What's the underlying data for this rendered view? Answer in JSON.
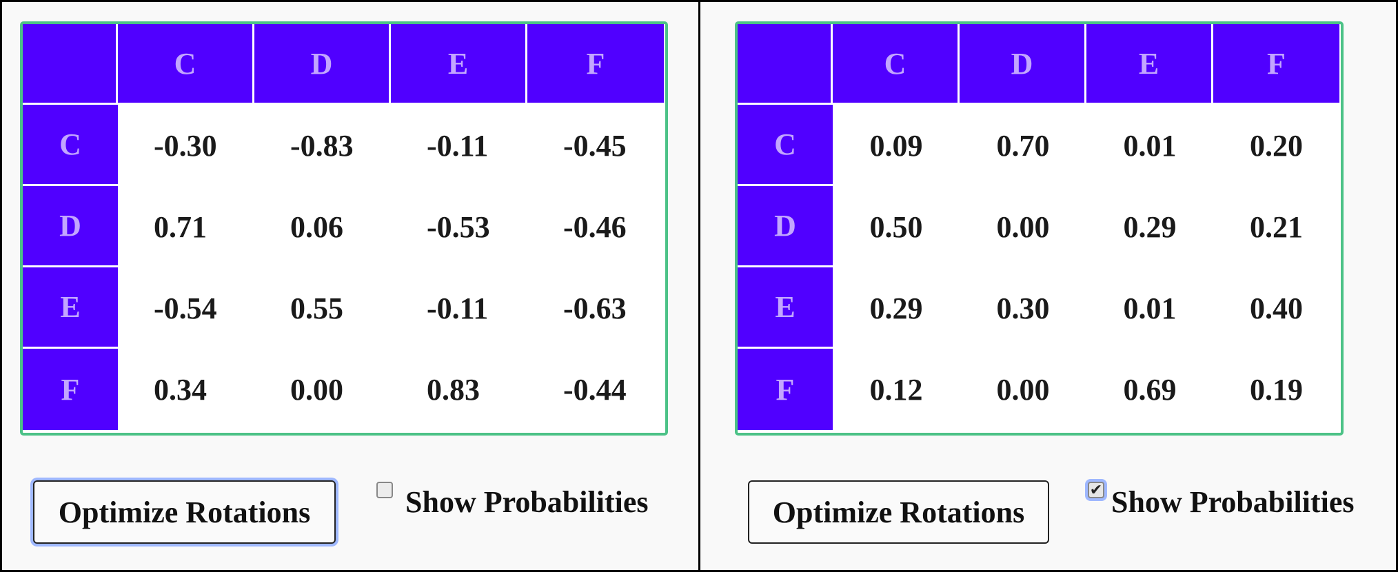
{
  "left_panel": {
    "columns": [
      "C",
      "D",
      "E",
      "F"
    ],
    "rows": [
      {
        "label": "C",
        "values": [
          "-0.30",
          "-0.83",
          "-0.11",
          "-0.45"
        ]
      },
      {
        "label": "D",
        "values": [
          "0.71",
          "0.06",
          "-0.53",
          "-0.46"
        ]
      },
      {
        "label": "E",
        "values": [
          "-0.54",
          "0.55",
          "-0.11",
          "-0.63"
        ]
      },
      {
        "label": "F",
        "values": [
          "0.34",
          "0.00",
          "0.83",
          "-0.44"
        ]
      }
    ],
    "button_label": "Optimize Rotations",
    "checkbox_label": "Show Probabilities",
    "checkbox_checked": false
  },
  "right_panel": {
    "columns": [
      "C",
      "D",
      "E",
      "F"
    ],
    "rows": [
      {
        "label": "C",
        "values": [
          "0.09",
          "0.70",
          "0.01",
          "0.20"
        ]
      },
      {
        "label": "D",
        "values": [
          "0.50",
          "0.00",
          "0.29",
          "0.21"
        ]
      },
      {
        "label": "E",
        "values": [
          "0.29",
          "0.30",
          "0.01",
          "0.40"
        ]
      },
      {
        "label": "F",
        "values": [
          "0.12",
          "0.00",
          "0.69",
          "0.19"
        ]
      }
    ],
    "button_label": "Optimize Rotations",
    "checkbox_label": "Show Probabilities",
    "checkbox_checked": true
  },
  "colors": {
    "header_bg": "#5000ff",
    "header_text": "#c3a6ff",
    "table_border": "#4cc287",
    "focus_ring": "#9fb8ff"
  }
}
